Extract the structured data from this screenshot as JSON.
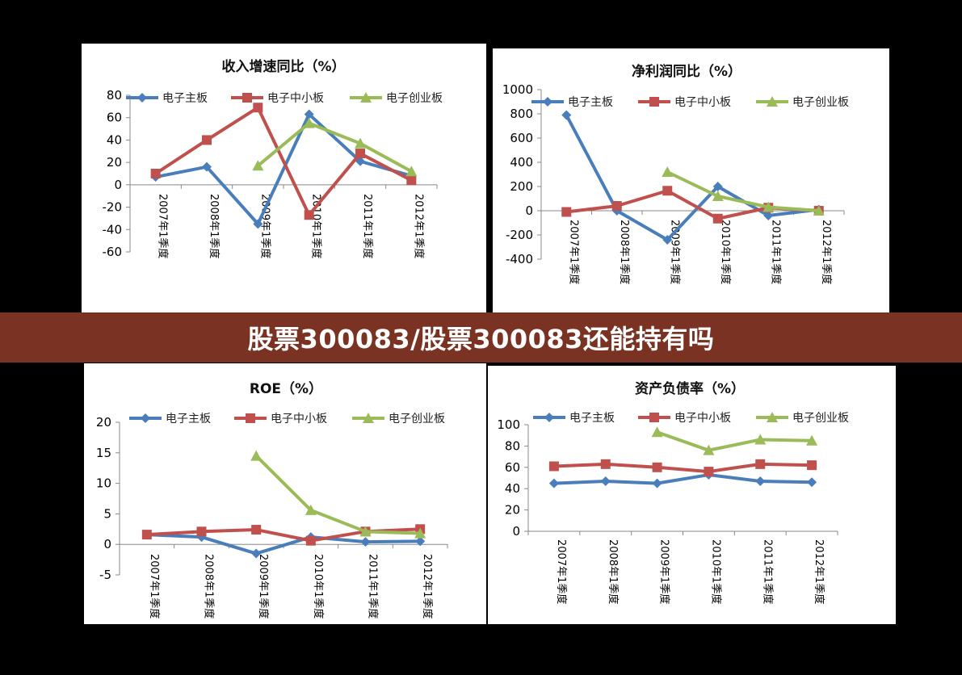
{
  "banner": {
    "title": "股票300083/股票300083还能持有吗"
  },
  "colors": {
    "main": "#4a7ebb",
    "sme": "#c0504d",
    "gem": "#9bbb59",
    "banner": "#7a3322"
  },
  "chart_data": [
    {
      "type": "line",
      "title": "收入增速同比（%）",
      "categories": [
        "2007年1季度",
        "2008年1季度",
        "2009年1季度",
        "2010年1季度",
        "2011年1季度",
        "2012年1季度"
      ],
      "ylim": [
        -60,
        80
      ],
      "yticks": [
        80,
        60,
        40,
        20,
        0,
        -20,
        -40,
        -60
      ],
      "legend": "top",
      "series": [
        {
          "name": "电子主板",
          "values": [
            7,
            16,
            -35,
            63,
            21,
            8
          ]
        },
        {
          "name": "电子中小板",
          "values": [
            10,
            40,
            69,
            -27,
            28,
            4
          ]
        },
        {
          "name": "电子创业板",
          "values": [
            null,
            null,
            17,
            55,
            37,
            12
          ]
        }
      ]
    },
    {
      "type": "line",
      "title": "净利润同比（%）",
      "categories": [
        "2007年1季度",
        "2008年1季度",
        "2009年1季度",
        "2010年1季度",
        "2011年1季度",
        "2012年1季度"
      ],
      "ylim": [
        -400,
        1000
      ],
      "yticks": [
        1000,
        800,
        600,
        400,
        200,
        0,
        -200,
        -400
      ],
      "legend": "top",
      "series": [
        {
          "name": "电子主板",
          "values": [
            790,
            0,
            -240,
            200,
            -40,
            10
          ]
        },
        {
          "name": "电子中小板",
          "values": [
            -10,
            40,
            165,
            -65,
            25,
            0
          ]
        },
        {
          "name": "电子创业板",
          "values": [
            null,
            null,
            320,
            120,
            30,
            0
          ]
        }
      ]
    },
    {
      "type": "line",
      "title": "ROE（%）",
      "categories": [
        "2007年1季度",
        "2008年1季度",
        "2009年1季度",
        "2010年1季度",
        "2011年1季度",
        "2012年1季度"
      ],
      "ylim": [
        -5,
        20
      ],
      "yticks": [
        20,
        15,
        10,
        5,
        0,
        -5
      ],
      "legend": "top",
      "series": [
        {
          "name": "电子主板",
          "values": [
            1.6,
            1.2,
            -1.5,
            1.2,
            0.4,
            0.5
          ]
        },
        {
          "name": "电子中小板",
          "values": [
            1.6,
            2.1,
            2.4,
            0.6,
            2.1,
            2.5
          ]
        },
        {
          "name": "电子创业板",
          "values": [
            null,
            null,
            14.5,
            5.6,
            2.1,
            1.8
          ]
        }
      ]
    },
    {
      "type": "line",
      "title": "资产负债率（%）",
      "categories": [
        "2007年1季度",
        "2008年1季度",
        "2009年1季度",
        "2010年1季度",
        "2011年1季度",
        "2012年1季度"
      ],
      "ylim": [
        0,
        100
      ],
      "yticks": [
        100,
        80,
        60,
        40,
        20,
        0
      ],
      "legend": "top",
      "series": [
        {
          "name": "电子主板",
          "values": [
            45,
            47,
            45,
            53,
            47,
            46
          ]
        },
        {
          "name": "电子中小板",
          "values": [
            61,
            63,
            60,
            56,
            63,
            62
          ]
        },
        {
          "name": "电子创业板",
          "values": [
            null,
            null,
            93,
            76,
            86,
            85
          ]
        }
      ]
    }
  ]
}
